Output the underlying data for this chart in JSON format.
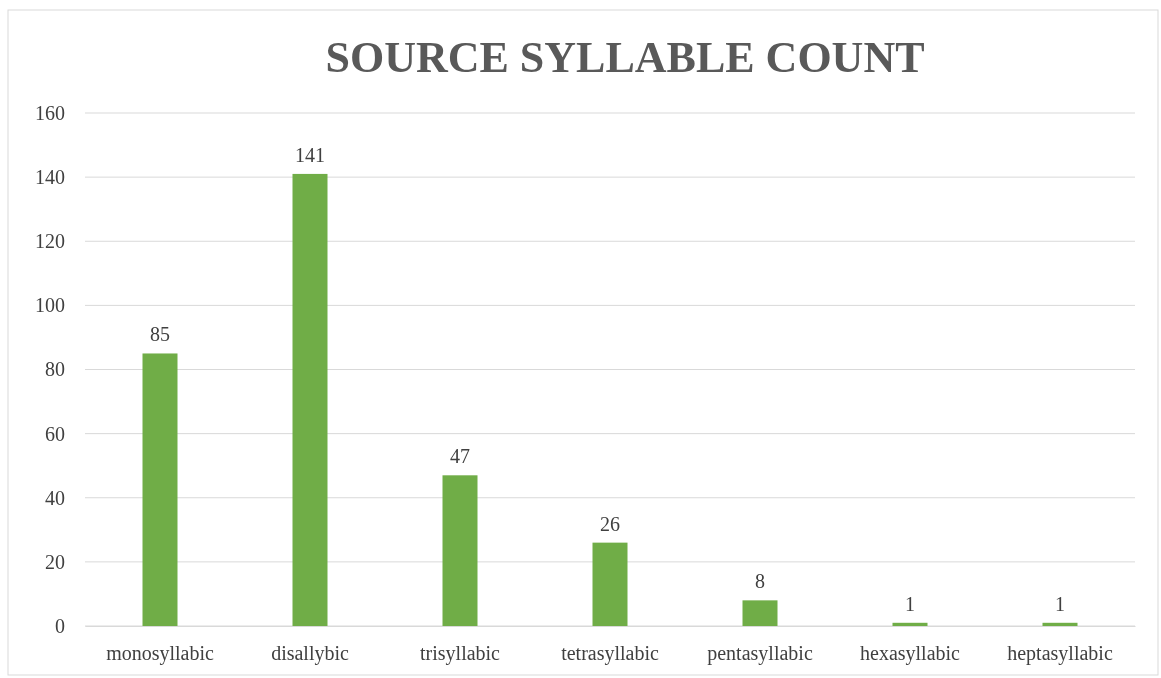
{
  "chart_data": {
    "type": "bar",
    "title": "SOURCE SYLLABLE COUNT",
    "categories": [
      "monosyllabic",
      "disallybic",
      "trisyllabic",
      "tetrasyllabic",
      "pentasyllabic",
      "hexasyllabic",
      "heptasyllabic"
    ],
    "values": [
      85,
      141,
      47,
      26,
      8,
      1,
      1
    ],
    "color": "#70ad47",
    "ylim": [
      0,
      160
    ],
    "yticks": [
      0,
      20,
      40,
      60,
      80,
      100,
      120,
      140,
      160
    ],
    "grid": "y",
    "data_labels": true
  }
}
